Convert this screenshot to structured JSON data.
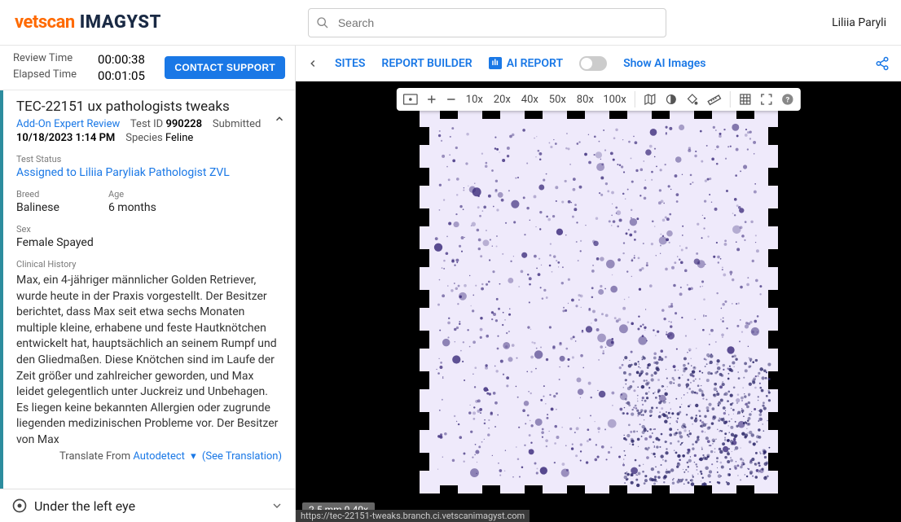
{
  "header": {
    "logo_part1": "vetscan",
    "logo_part2": "IMAGYST",
    "search_placeholder": "Search",
    "user_name": "Liliia Paryli"
  },
  "times": {
    "review_label": "Review Time",
    "review_value": "00:00:38",
    "elapsed_label": "Elapsed Time",
    "elapsed_value": "00:01:05",
    "contact_support": "CONTACT SUPPORT"
  },
  "case": {
    "title": "TEC-22151 ux pathologists tweaks",
    "addon": "Add-On Expert Review",
    "test_id_label": "Test ID",
    "test_id": "990228",
    "submitted_label": "Submitted",
    "submitted_value": "10/18/2023 1:14 PM",
    "species_label": "Species",
    "species_value": "Feline",
    "status_label": "Test Status",
    "assigned_to": "Assigned to Liliia Paryliak Pathologist ZVL",
    "breed_label": "Breed",
    "breed_value": "Balinese",
    "age_label": "Age",
    "age_value": "6 months",
    "sex_label": "Sex",
    "sex_value": "Female Spayed",
    "history_label": "Clinical History",
    "history_text": "Max, ein 4-jähriger männlicher Golden Retriever, wurde heute in der Praxis vorgestellt. Der Besitzer berichtet, dass Max seit etwa sechs Monaten multiple kleine, erhabene und feste Hautknötchen entwickelt hat, hauptsächlich an seinem Rumpf und den Gliedmaßen. Diese Knötchen sind im Laufe der Zeit größer und zahlreicher geworden, und Max leidet gelegentlich unter Juckreiz und Unbehagen. Es liegen keine bekannten Allergien oder zugrunde liegenden medizinischen Probleme vor. Der Besitzer von Max",
    "translate_from": "Translate From",
    "autodetect": "Autodetect",
    "see_translation": "(See Translation)",
    "location": "Under the left eye"
  },
  "nav": {
    "sites": "SITES",
    "report_builder": "REPORT BUILDER",
    "ai_report": "AI REPORT",
    "show_ai_images": "Show AI Images"
  },
  "toolbar": {
    "zoom_levels": [
      "10x",
      "20x",
      "40x",
      "50x",
      "80x",
      "100x"
    ]
  },
  "viewer": {
    "scale_label": "2.5 mm 0.40x",
    "status_url": "https://tec-22151-tweaks.branch.ci.vetscanimagyst.com",
    "slide": {
      "bg": "#efeafb",
      "speck_color": "#3a2a7a",
      "dense_color": "#2b2668"
    }
  }
}
